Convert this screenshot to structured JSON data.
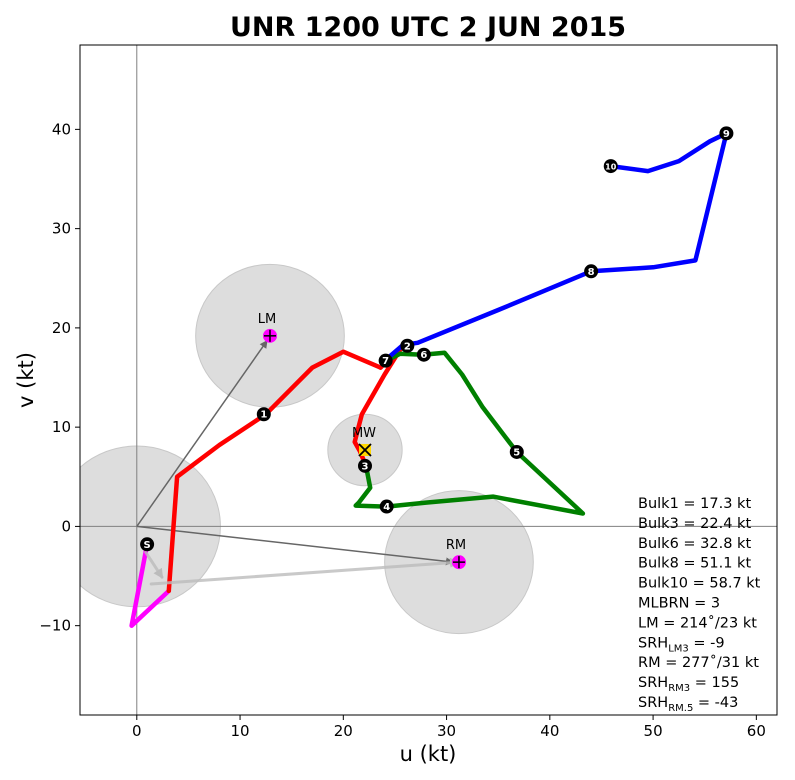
{
  "chart_data": {
    "type": "line",
    "title": "UNR 1200 UTC 2 JUN 2015",
    "xlabel": "u (kt)",
    "ylabel": "v (kt)",
    "xlim": [
      -5.5,
      62
    ],
    "ylim": [
      -19,
      48.5
    ],
    "xticks": [
      0,
      10,
      20,
      30,
      40,
      50,
      60
    ],
    "yticks": [
      -10,
      0,
      10,
      20,
      30,
      40
    ],
    "xtick_labels": [
      "0",
      "10",
      "20",
      "30",
      "40",
      "50",
      "60"
    ],
    "ytick_labels": [
      "−10",
      "0",
      "10",
      "20",
      "30",
      "40"
    ],
    "grid": false,
    "series": [
      {
        "color": "#ff00ff",
        "points": [
          [
            1,
            -1.8
          ],
          [
            0.6,
            -4
          ],
          [
            -0.5,
            -10
          ],
          [
            3.1,
            -6.5
          ]
        ]
      },
      {
        "color": "#ff0000",
        "points": [
          [
            3.1,
            -6.5
          ],
          [
            3.9,
            5
          ],
          [
            8,
            8.2
          ],
          [
            12.5,
            11.3
          ],
          [
            17,
            16
          ],
          [
            20,
            17.6
          ],
          [
            23.6,
            16
          ]
        ]
      },
      {
        "color": "#ff0000",
        "points": [
          [
            23.6,
            16
          ],
          [
            25.8,
            18.3
          ],
          [
            24,
            15.3
          ],
          [
            21.8,
            11.3
          ],
          [
            21.3,
            9.3
          ],
          [
            21.1,
            8.5
          ],
          [
            21.6,
            7.6
          ],
          [
            22.2,
            6.1
          ]
        ]
      },
      {
        "color": "#008000",
        "points": [
          [
            22.2,
            6.1
          ],
          [
            22.6,
            3.9
          ],
          [
            21.5,
            2.4
          ],
          [
            21.2,
            2.1
          ],
          [
            24.2,
            2
          ],
          [
            28,
            2.4
          ],
          [
            34.5,
            3
          ],
          [
            43.2,
            1.3
          ],
          [
            36.8,
            7.5
          ],
          [
            33.5,
            12
          ],
          [
            31.5,
            15.3
          ],
          [
            29.8,
            17.5
          ],
          [
            27.7,
            17.3
          ],
          [
            25.5,
            17.4
          ],
          [
            23.8,
            16.5
          ]
        ]
      },
      {
        "color": "#0000ff",
        "points": [
          [
            23.8,
            16.5
          ],
          [
            25.8,
            18.3
          ],
          [
            27.2,
            18.5
          ],
          [
            35,
            21.8
          ],
          [
            44,
            25.7
          ],
          [
            50,
            26.1
          ],
          [
            54.1,
            26.8
          ],
          [
            57.1,
            39.6
          ],
          [
            55.5,
            38.8
          ],
          [
            52.5,
            36.8
          ],
          [
            49.5,
            35.8
          ],
          [
            45.9,
            36.3
          ]
        ]
      },
      {
        "color": "#bbbbbb",
        "points": [
          [
            1.4,
            -5.8
          ],
          [
            31.2,
            -3.6
          ]
        ]
      }
    ],
    "height_markers": [
      {
        "label": "S",
        "u": 1,
        "v": -1.8
      },
      {
        "label": "1",
        "u": 12.3,
        "v": 11.3
      },
      {
        "label": "2",
        "u": 26.2,
        "v": 18.2
      },
      {
        "label": "3",
        "u": 22.1,
        "v": 6.1
      },
      {
        "label": "4",
        "u": 24.2,
        "v": 2
      },
      {
        "label": "5",
        "u": 36.8,
        "v": 7.5
      },
      {
        "label": "6",
        "u": 27.8,
        "v": 17.3
      },
      {
        "label": "7",
        "u": 24.1,
        "v": 16.7
      },
      {
        "label": "8",
        "u": 44,
        "v": 25.7
      },
      {
        "label": "9",
        "u": 57.1,
        "v": 39.6
      },
      {
        "label": "10",
        "u": 45.9,
        "v": 36.3
      }
    ],
    "storm_motion": {
      "LM": {
        "label": "LM",
        "u": 12.9,
        "v": 19.2,
        "radius_kt": 7.2
      },
      "RM": {
        "label": "RM",
        "u": 31.2,
        "v": -3.6,
        "radius_kt": 7.2
      },
      "MW": {
        "label": "MW",
        "u": 22.1,
        "v": 7.7,
        "radius_kt": 3.6
      },
      "origin_radius_kt": 8.1
    },
    "stats": [
      {
        "text": "Bulk1 = 17.3 kt"
      },
      {
        "text": "Bulk3 = 22.4 kt"
      },
      {
        "text": "Bulk6 = 32.8 kt"
      },
      {
        "text": "Bulk8 = 51.1 kt"
      },
      {
        "text": "Bulk10 = 58.7 kt"
      },
      {
        "text": "MLBRN = 3"
      },
      {
        "text": "LM = 214˚/23 kt"
      },
      {
        "text": "SRH",
        "sub": "LM3",
        "tail": " = -9"
      },
      {
        "text": "RM = 277˚/31 kt"
      },
      {
        "text": "SRH",
        "sub": "RM3",
        "tail": " = 155"
      },
      {
        "text": "SRH",
        "sub": "RM.5",
        "tail": " = -43"
      }
    ],
    "colors": {
      "surface": "#ff00ff",
      "low": "#ff0000",
      "mid": "#008000",
      "upper": "#0000ff",
      "marker": "#ff00ff",
      "circle_fill": "#dddddd",
      "mw_marker": "#ffd700"
    }
  }
}
